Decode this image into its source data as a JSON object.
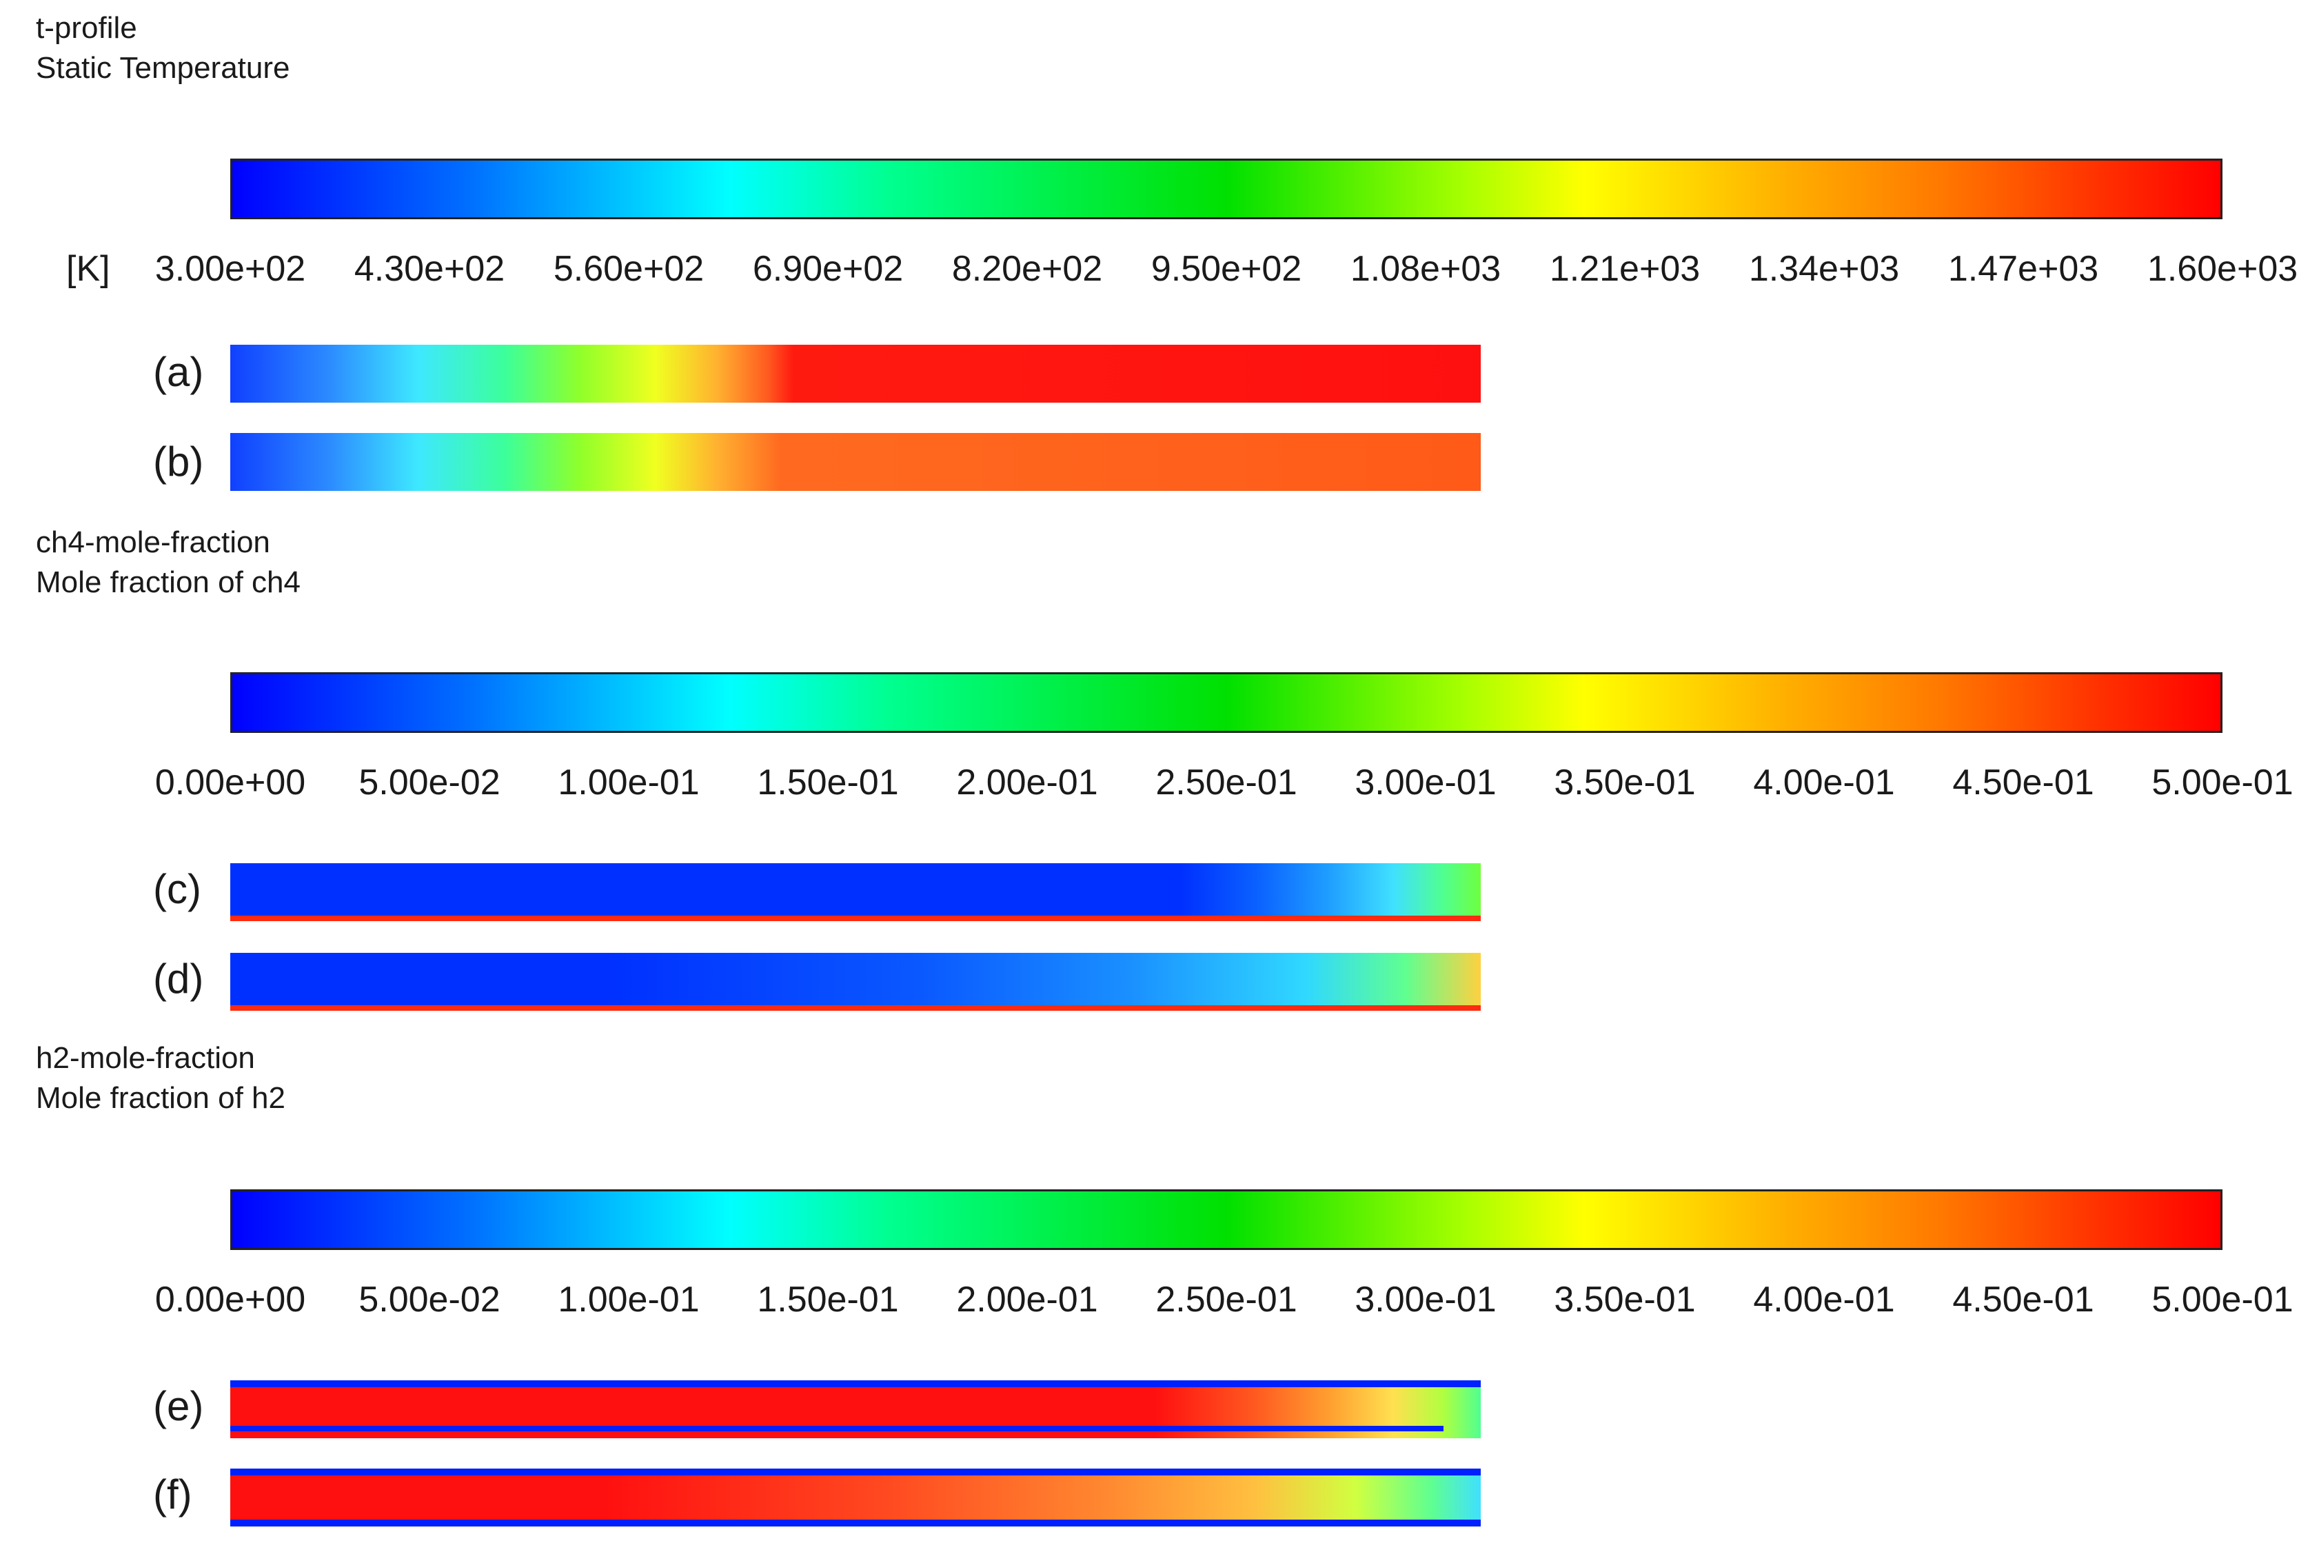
{
  "sections": [
    {
      "id": "temperature",
      "title": "t-profile",
      "subtitle": "Static Temperature",
      "unit": "[K]",
      "colormap": "rainbow",
      "colormap_range": [
        300,
        1600
      ],
      "tick_labels": [
        "3.00e+02",
        "4.30e+02",
        "5.60e+02",
        "6.90e+02",
        "8.20e+02",
        "9.50e+02",
        "1.08e+03",
        "1.21e+03",
        "1.34e+03",
        "1.47e+03",
        "1.60e+03"
      ],
      "panels": [
        {
          "label": "(a)"
        },
        {
          "label": "(b)"
        }
      ]
    },
    {
      "id": "ch4",
      "title": "ch4-mole-fraction",
      "subtitle": "Mole fraction of ch4",
      "unit": "",
      "colormap": "rainbow",
      "colormap_range": [
        0,
        0.5
      ],
      "tick_labels": [
        "0.00e+00",
        "5.00e-02",
        "1.00e-01",
        "1.50e-01",
        "2.00e-01",
        "2.50e-01",
        "3.00e-01",
        "3.50e-01",
        "4.00e-01",
        "4.50e-01",
        "5.00e-01"
      ],
      "panels": [
        {
          "label": "(c)"
        },
        {
          "label": "(d)"
        }
      ]
    },
    {
      "id": "h2",
      "title": "h2-mole-fraction",
      "subtitle": "Mole fraction of h2",
      "unit": "",
      "colormap": "rainbow",
      "colormap_range": [
        0,
        0.5
      ],
      "tick_labels": [
        "0.00e+00",
        "5.00e-02",
        "1.00e-01",
        "1.50e-01",
        "2.00e-01",
        "2.50e-01",
        "3.00e-01",
        "3.50e-01",
        "4.00e-01",
        "4.50e-01",
        "5.00e-01"
      ],
      "panels": [
        {
          "label": "(e)"
        },
        {
          "label": "(f)"
        }
      ]
    }
  ],
  "colors": {
    "low": "#0000ff",
    "mid": "#00e000",
    "high": "#ff0000"
  }
}
